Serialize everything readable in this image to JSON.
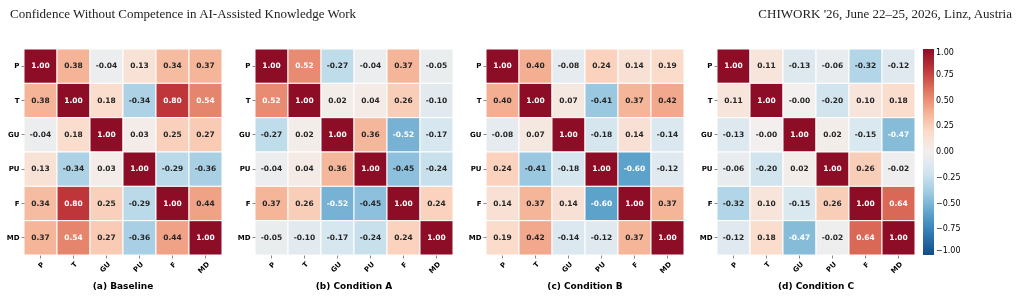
{
  "chart_data": [
    {
      "type": "heatmap",
      "title": "(a) Baseline",
      "annotations": [
        "Confidence Without Competence in AI-Assisted Knowledge Work"
      ],
      "categories": [
        "P",
        "T",
        "GU",
        "PU",
        "F",
        "MD"
      ],
      "y_categories": [
        "P",
        "T",
        "GU",
        "PU",
        "F",
        "MD"
      ],
      "data_labels": true,
      "cells": [
        [
          1.0,
          0.38,
          -0.04,
          0.13,
          0.34,
          0.37
        ],
        [
          0.38,
          1.0,
          0.18,
          -0.34,
          0.8,
          0.54
        ],
        [
          -0.04,
          0.18,
          1.0,
          0.03,
          0.25,
          0.27
        ],
        [
          0.13,
          -0.34,
          0.03,
          1.0,
          -0.29,
          -0.36
        ],
        [
          0.34,
          0.8,
          0.25,
          -0.29,
          1.0,
          0.44
        ],
        [
          0.37,
          0.54,
          0.27,
          -0.36,
          0.44,
          1.0
        ]
      ],
      "cell_labels": [
        [
          "1.00",
          "0.38",
          "-0.04",
          "0.13",
          "0.34",
          "0.37"
        ],
        [
          "0.38",
          "1.00",
          "0.18",
          "-0.34",
          "0.80",
          "0.54"
        ],
        [
          "-0.04",
          "0.18",
          "1.00",
          "0.03",
          "0.25",
          "0.27"
        ],
        [
          "0.13",
          "-0.34",
          "0.03",
          "1.00",
          "-0.29",
          "-0.36"
        ],
        [
          "0.34",
          "0.80",
          "0.25",
          "-0.29",
          "1.00",
          "0.44"
        ],
        [
          "0.37",
          "0.54",
          "0.27",
          "-0.36",
          "0.44",
          "1.00"
        ]
      ]
    },
    {
      "type": "heatmap",
      "title": "(b) Condition A",
      "categories": [
        "P",
        "T",
        "GU",
        "PU",
        "F",
        "MD"
      ],
      "y_categories": [
        "P",
        "T",
        "GU",
        "PU",
        "F",
        "MD"
      ],
      "data_labels": true,
      "cells": [
        [
          1.0,
          0.52,
          -0.27,
          -0.04,
          0.37,
          -0.05
        ],
        [
          0.52,
          1.0,
          0.02,
          0.04,
          0.26,
          -0.1
        ],
        [
          -0.27,
          0.02,
          1.0,
          0.36,
          -0.52,
          -0.17
        ],
        [
          -0.04,
          0.04,
          0.36,
          1.0,
          -0.45,
          -0.24
        ],
        [
          0.37,
          0.26,
          -0.52,
          -0.45,
          1.0,
          0.24
        ],
        [
          -0.05,
          -0.1,
          -0.17,
          -0.24,
          0.24,
          1.0
        ]
      ],
      "cell_labels": [
        [
          "1.00",
          "0.52",
          "-0.27",
          "-0.04",
          "0.37",
          "-0.05"
        ],
        [
          "0.52",
          "1.00",
          "0.02",
          "0.04",
          "0.26",
          "-0.10"
        ],
        [
          "-0.27",
          "0.02",
          "1.00",
          "0.36",
          "-0.52",
          "-0.17"
        ],
        [
          "-0.04",
          "0.04",
          "0.36",
          "1.00",
          "-0.45",
          "-0.24"
        ],
        [
          "0.37",
          "0.26",
          "-0.52",
          "-0.45",
          "1.00",
          "0.24"
        ],
        [
          "-0.05",
          "-0.10",
          "-0.17",
          "-0.24",
          "0.24",
          "1.00"
        ]
      ]
    },
    {
      "type": "heatmap",
      "title": "(c) Condition B",
      "categories": [
        "P",
        "T",
        "GU",
        "PU",
        "F",
        "MD"
      ],
      "y_categories": [
        "P",
        "T",
        "GU",
        "PU",
        "F",
        "MD"
      ],
      "data_labels": true,
      "cells": [
        [
          1.0,
          0.4,
          -0.08,
          0.24,
          0.14,
          0.19
        ],
        [
          0.4,
          1.0,
          0.07,
          -0.41,
          0.37,
          0.42
        ],
        [
          -0.08,
          0.07,
          1.0,
          -0.18,
          0.14,
          -0.14
        ],
        [
          0.24,
          -0.41,
          -0.18,
          1.0,
          -0.6,
          -0.12
        ],
        [
          0.14,
          0.37,
          0.14,
          -0.6,
          1.0,
          0.37
        ],
        [
          0.19,
          0.42,
          -0.14,
          -0.12,
          0.37,
          1.0
        ]
      ],
      "cell_labels": [
        [
          "1.00",
          "0.40",
          "-0.08",
          "0.24",
          "0.14",
          "0.19"
        ],
        [
          "0.40",
          "1.00",
          "0.07",
          "-0.41",
          "0.37",
          "0.42"
        ],
        [
          "-0.08",
          "0.07",
          "1.00",
          "-0.18",
          "0.14",
          "-0.14"
        ],
        [
          "0.24",
          "-0.41",
          "-0.18",
          "1.00",
          "-0.60",
          "-0.12"
        ],
        [
          "0.14",
          "0.37",
          "0.14",
          "-0.60",
          "1.00",
          "0.37"
        ],
        [
          "0.19",
          "0.42",
          "-0.14",
          "-0.12",
          "0.37",
          "1.00"
        ]
      ]
    },
    {
      "type": "heatmap",
      "title": "(d) Condition C",
      "annotations": [
        "CHIWORK '26, June 22–25, 2026, Linz, Austria"
      ],
      "categories": [
        "P",
        "T",
        "GU",
        "PU",
        "F",
        "MD"
      ],
      "y_categories": [
        "P",
        "T",
        "GU",
        "PU",
        "F",
        "MD"
      ],
      "clim": [
        -1,
        1
      ],
      "cticks": [
        {
          "value": -1,
          "label": "−1.00"
        },
        {
          "value": -0.75,
          "label": "−0.75"
        },
        {
          "value": -0.5,
          "label": "−0.50"
        },
        {
          "value": -0.25,
          "label": "−0.25"
        },
        {
          "value": 0,
          "label": "0.00"
        },
        {
          "value": 0.25,
          "label": "0.25"
        },
        {
          "value": 0.5,
          "label": "0.50"
        },
        {
          "value": 0.75,
          "label": "0.75"
        },
        {
          "value": 1,
          "label": "1.00"
        }
      ],
      "data_labels": true,
      "cells": [
        [
          1.0,
          0.11,
          -0.13,
          -0.06,
          -0.32,
          -0.12
        ],
        [
          0.11,
          1.0,
          0.0,
          -0.2,
          0.1,
          0.18
        ],
        [
          -0.13,
          0.0,
          1.0,
          0.02,
          -0.15,
          -0.47
        ],
        [
          -0.06,
          -0.2,
          0.02,
          1.0,
          0.26,
          -0.02
        ],
        [
          -0.32,
          0.1,
          -0.15,
          0.26,
          1.0,
          0.64
        ],
        [
          -0.12,
          0.18,
          -0.47,
          -0.02,
          0.64,
          1.0
        ]
      ],
      "cell_labels": [
        [
          "1.00",
          "0.11",
          "-0.13",
          "-0.06",
          "-0.32",
          "-0.12"
        ],
        [
          "0.11",
          "1.00",
          "-0.00",
          "-0.20",
          "0.10",
          "0.18"
        ],
        [
          "-0.13",
          "-0.00",
          "1.00",
          "0.02",
          "-0.15",
          "-0.47"
        ],
        [
          "-0.06",
          "-0.20",
          "0.02",
          "1.00",
          "0.26",
          "-0.02"
        ],
        [
          "-0.32",
          "0.10",
          "-0.15",
          "0.26",
          "1.00",
          "0.64"
        ],
        [
          "-0.12",
          "0.18",
          "-0.47",
          "-0.02",
          "0.64",
          "1.00"
        ]
      ]
    }
  ]
}
